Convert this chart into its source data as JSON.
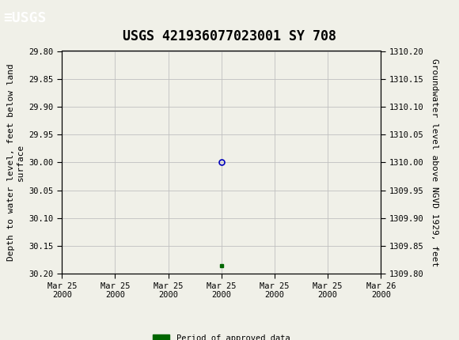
{
  "title": "USGS 421936077023001 SY 708",
  "header_color": "#1a6b3c",
  "background_color": "#f0f0e8",
  "plot_bg_color": "#f0f0e8",
  "grid_color": "#c0c0c0",
  "left_ylabel": "Depth to water level, feet below land\nsurface",
  "right_ylabel": "Groundwater level above NGVD 1929, feet",
  "ylim_left_top": 29.8,
  "ylim_left_bottom": 30.2,
  "ylim_right_top": 1310.2,
  "ylim_right_bottom": 1309.8,
  "left_yticks": [
    29.8,
    29.85,
    29.9,
    29.95,
    30.0,
    30.05,
    30.1,
    30.15,
    30.2
  ],
  "right_yticks": [
    1310.2,
    1310.15,
    1310.1,
    1310.05,
    1310.0,
    1309.95,
    1309.9,
    1309.85,
    1309.8
  ],
  "xlim": [
    0,
    6
  ],
  "xtick_positions": [
    0,
    1,
    2,
    3,
    4,
    5,
    6
  ],
  "xtick_labels": [
    "Mar 25\n2000",
    "Mar 25\n2000",
    "Mar 25\n2000",
    "Mar 25\n2000",
    "Mar 25\n2000",
    "Mar 25\n2000",
    "Mar 26\n2000"
  ],
  "point_x": 3.0,
  "point_y_depth": 30.0,
  "point_color": "#0000bb",
  "point_size": 5,
  "green_square_x": 3.0,
  "green_square_y_depth": 30.185,
  "green_square_color": "#006600",
  "legend_label": "Period of approved data",
  "title_fontsize": 12,
  "axis_fontsize": 8,
  "tick_fontsize": 7.5,
  "font_family": "DejaVu Sans Mono"
}
